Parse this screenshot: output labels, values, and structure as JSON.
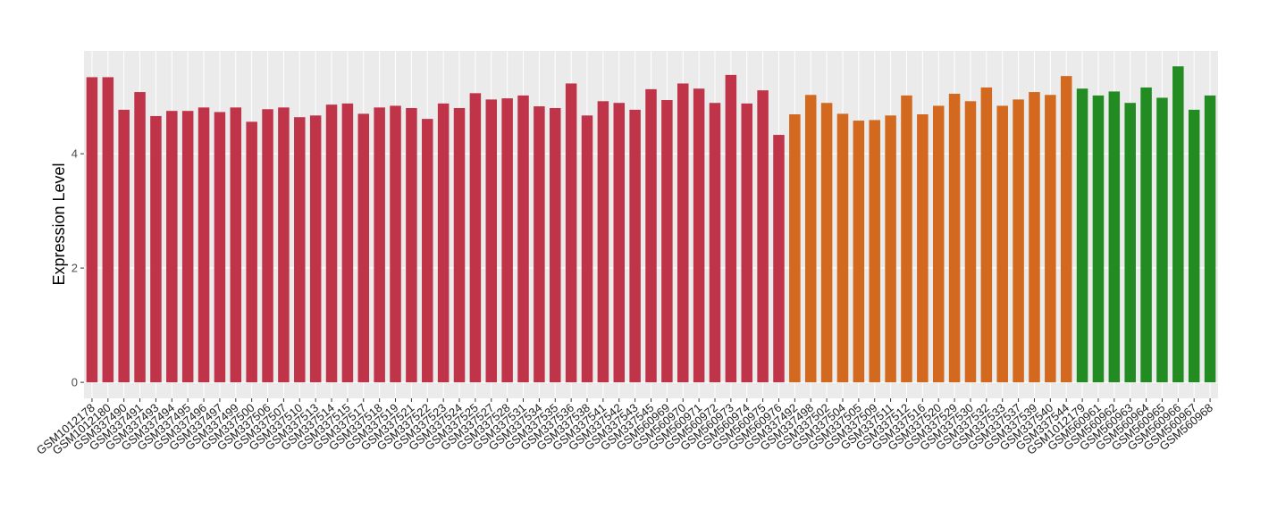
{
  "chart_data": {
    "type": "bar",
    "ylabel": "Expression Level",
    "categories": [
      "GSM1012178",
      "GSM1012180",
      "GSM337490",
      "GSM337491",
      "GSM337493",
      "GSM337494",
      "GSM337495",
      "GSM337496",
      "GSM337497",
      "GSM337499",
      "GSM337500",
      "GSM337506",
      "GSM337507",
      "GSM337510",
      "GSM337513",
      "GSM337514",
      "GSM337515",
      "GSM337517",
      "GSM337518",
      "GSM337519",
      "GSM337521",
      "GSM337522",
      "GSM337523",
      "GSM337524",
      "GSM337525",
      "GSM337527",
      "GSM337528",
      "GSM337531",
      "GSM337534",
      "GSM337535",
      "GSM337536",
      "GSM337538",
      "GSM337541",
      "GSM337542",
      "GSM337543",
      "GSM337545",
      "GSM560969",
      "GSM560970",
      "GSM560971",
      "GSM560972",
      "GSM560973",
      "GSM560974",
      "GSM560975",
      "GSM560976",
      "GSM337492",
      "GSM337498",
      "GSM337502",
      "GSM337504",
      "GSM337505",
      "GSM337509",
      "GSM337511",
      "GSM337512",
      "GSM337516",
      "GSM337520",
      "GSM337529",
      "GSM337530",
      "GSM337532",
      "GSM337533",
      "GSM337537",
      "GSM337539",
      "GSM337540",
      "GSM337544",
      "GSM1012179",
      "GSM560961",
      "GSM560962",
      "GSM560963",
      "GSM560964",
      "GSM560965",
      "GSM560966",
      "GSM560967",
      "GSM560968"
    ],
    "values": [
      5.34,
      5.34,
      4.77,
      5.08,
      4.66,
      4.75,
      4.75,
      4.81,
      4.73,
      4.81,
      4.56,
      4.78,
      4.81,
      4.64,
      4.67,
      4.86,
      4.88,
      4.7,
      4.81,
      4.84,
      4.8,
      4.61,
      4.88,
      4.8,
      5.06,
      4.95,
      4.97,
      5.02,
      4.83,
      4.8,
      5.23,
      4.67,
      4.92,
      4.89,
      4.77,
      5.13,
      4.94,
      5.23,
      5.14,
      4.89,
      5.38,
      4.88,
      5.11,
      4.33,
      4.69,
      5.03,
      4.89,
      4.7,
      4.58,
      4.59,
      4.67,
      5.02,
      4.69,
      4.84,
      5.05,
      4.92,
      5.16,
      4.84,
      4.95,
      5.08,
      5.03,
      5.36,
      5.14,
      5.02,
      5.09,
      4.89,
      5.16,
      4.98,
      5.53,
      4.77,
      5.02
    ],
    "colors": [
      "#c0344a",
      "#c0344a",
      "#c0344a",
      "#c0344a",
      "#c0344a",
      "#c0344a",
      "#c0344a",
      "#c0344a",
      "#c0344a",
      "#c0344a",
      "#c0344a",
      "#c0344a",
      "#c0344a",
      "#c0344a",
      "#c0344a",
      "#c0344a",
      "#c0344a",
      "#c0344a",
      "#c0344a",
      "#c0344a",
      "#c0344a",
      "#c0344a",
      "#c0344a",
      "#c0344a",
      "#c0344a",
      "#c0344a",
      "#c0344a",
      "#c0344a",
      "#c0344a",
      "#c0344a",
      "#c0344a",
      "#c0344a",
      "#c0344a",
      "#c0344a",
      "#c0344a",
      "#c0344a",
      "#c0344a",
      "#c0344a",
      "#c0344a",
      "#c0344a",
      "#c0344a",
      "#c0344a",
      "#c0344a",
      "#c0344a",
      "#d2691e",
      "#d2691e",
      "#d2691e",
      "#d2691e",
      "#d2691e",
      "#d2691e",
      "#d2691e",
      "#d2691e",
      "#d2691e",
      "#d2691e",
      "#d2691e",
      "#d2691e",
      "#d2691e",
      "#d2691e",
      "#d2691e",
      "#d2691e",
      "#d2691e",
      "#d2691e",
      "#228b22",
      "#228b22",
      "#228b22",
      "#228b22",
      "#228b22",
      "#228b22",
      "#228b22",
      "#228b22",
      "#228b22"
    ],
    "ylim": [
      -0.28,
      5.8
    ],
    "yticks": [
      0,
      2,
      4
    ],
    "grid": true
  }
}
